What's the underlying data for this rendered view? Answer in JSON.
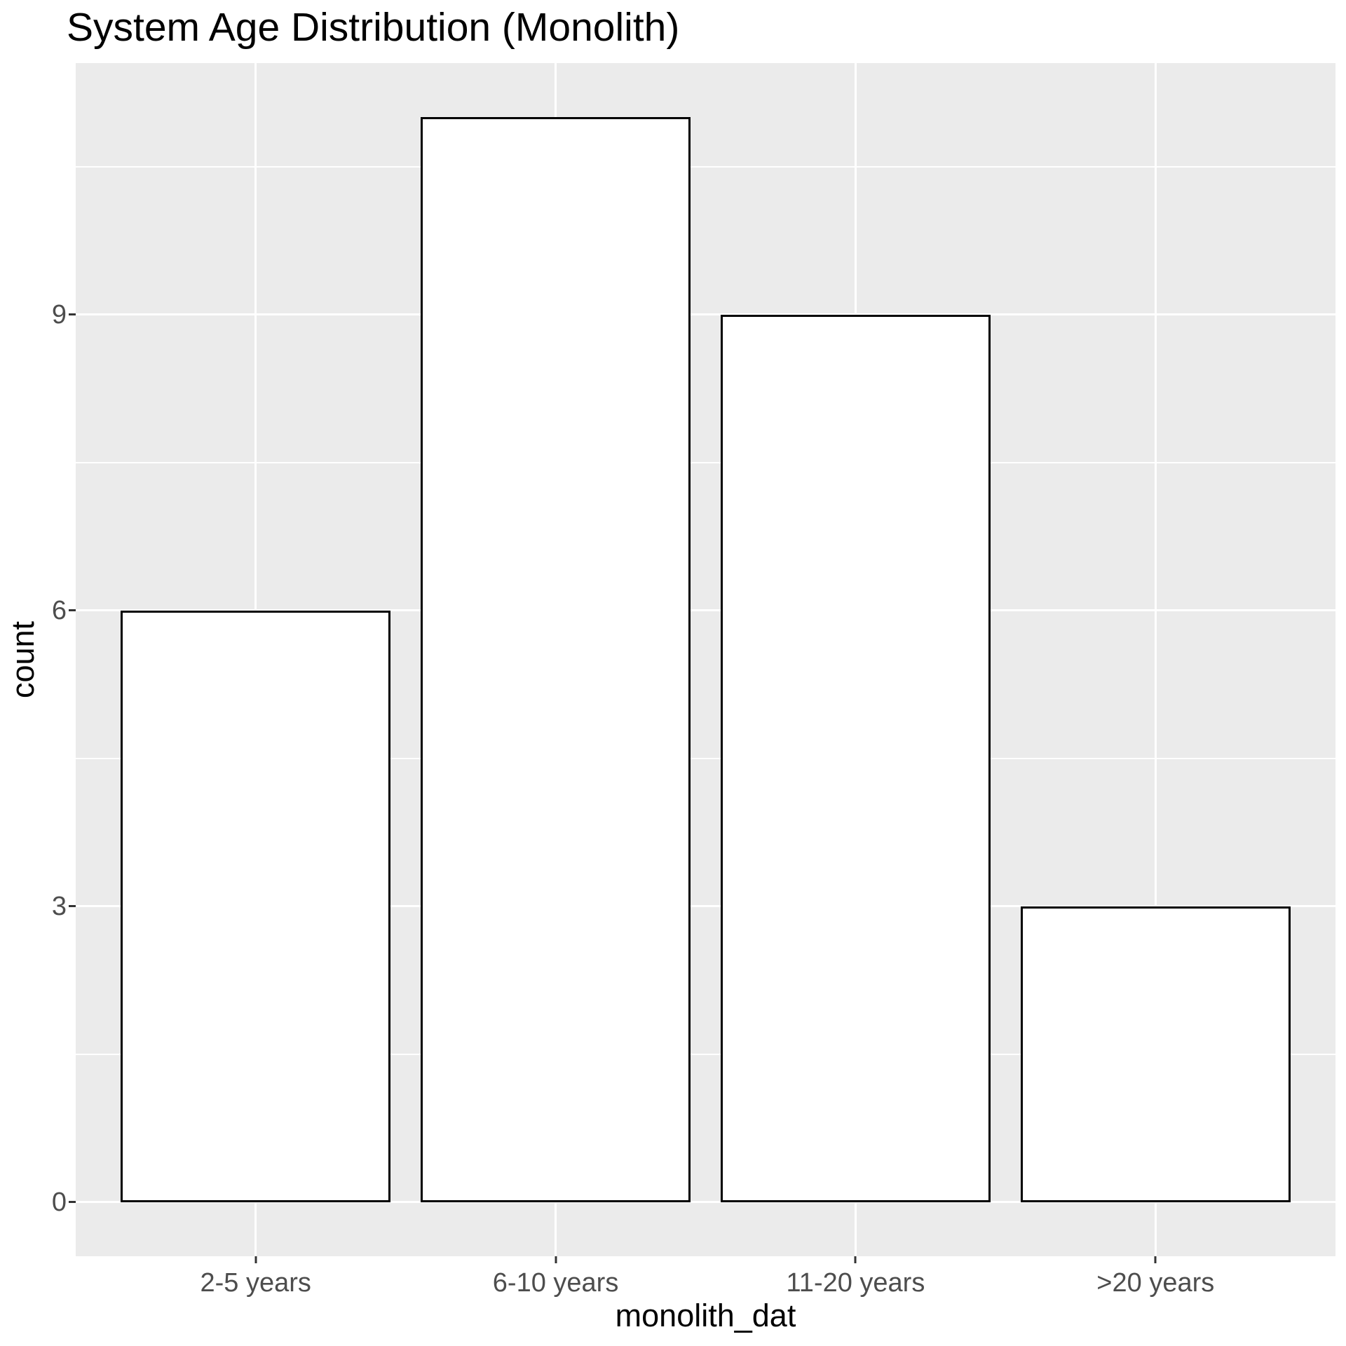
{
  "chart_data": {
    "type": "bar",
    "title": "System Age Distribution (Monolith)",
    "xlabel": "monolith_dat",
    "ylabel": "count",
    "categories": [
      "2-5 years",
      "6-10 years",
      "11-20 years",
      ">20 years"
    ],
    "values": [
      6,
      11,
      9,
      3
    ],
    "yticks": [
      0,
      3,
      6,
      9
    ],
    "y_minor_ticks": [
      1.5,
      4.5,
      7.5,
      10.5
    ],
    "ylim": [
      -0.55,
      11.55
    ],
    "xlim": [
      0.4,
      4.6
    ],
    "bar_rel_width": 0.9,
    "grid": "major-and-minor",
    "legend": "none",
    "colors": {
      "panel_background": "#EBEBEB",
      "gridline": "#FFFFFF",
      "bar_fill": "#FFFFFF",
      "bar_outline": "#000000",
      "tick_label": "#4D4D4D",
      "tick_mark": "#333333",
      "title_text": "#000000",
      "axis_title_text": "#000000"
    }
  }
}
